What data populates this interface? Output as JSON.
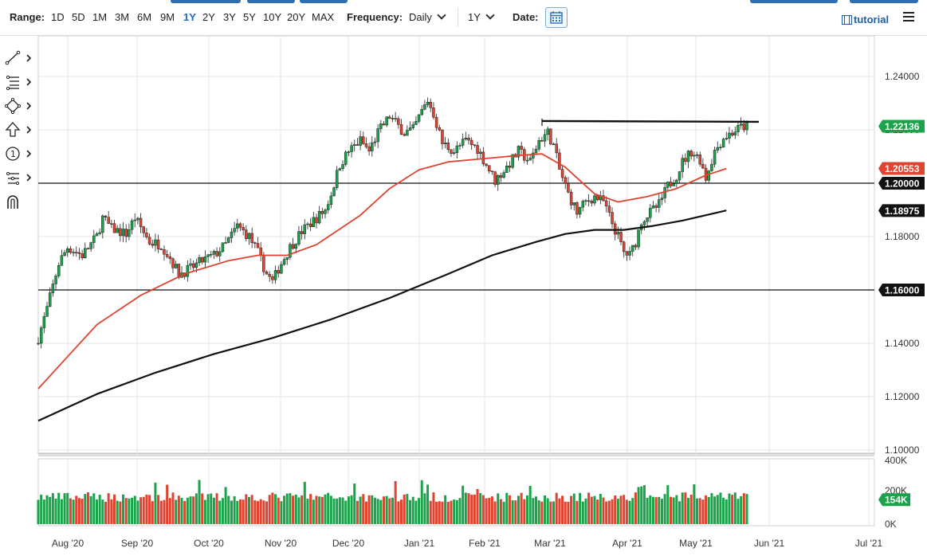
{
  "toolbar": {
    "range_label": "Range:",
    "ranges": [
      "1D",
      "5D",
      "1M",
      "3M",
      "6M",
      "9M",
      "1Y",
      "2Y",
      "3Y",
      "5Y",
      "10Y",
      "20Y",
      "MAX"
    ],
    "active_range": "1Y",
    "frequency_label": "Frequency:",
    "frequency_value": "Daily",
    "period_value": "1Y",
    "date_label": "Date:",
    "tutorial_label": "tutorial"
  },
  "side_tools": [
    "line-draw-icon",
    "fibonacci-icon",
    "shape-icon",
    "arrow-icon",
    "annotation-icon",
    "pitchfork-icon",
    "magnet-icon"
  ],
  "colors": {
    "up": "#1aa34a",
    "down": "#e0432f",
    "ma_fast": "#e0432f",
    "ma_slow": "#111111",
    "tag_green": "#1aa34a",
    "tag_red": "#e0432f",
    "tag_black": "#111111"
  },
  "chart_data": {
    "type": "candlestick",
    "grid": true,
    "y_axis_position": "right",
    "price_axis": {
      "min": 1.1,
      "max": 1.25,
      "ticks": [
        "1.24000",
        "1.22000",
        "1.20000",
        "1.18000",
        "1.16000",
        "1.14000",
        "1.12000",
        "1.10000"
      ]
    },
    "volume_axis": {
      "ticks": [
        "400K",
        "200K",
        "0K"
      ]
    },
    "x_axis": {
      "ticks": [
        "Aug '20",
        "Sep '20",
        "Oct '20",
        "Nov '20",
        "Dec '20",
        "Jan '21",
        "Feb '21",
        "Mar '21",
        "Apr '21",
        "May '21",
        "Jun '21",
        "Jul '21"
      ]
    },
    "price_tags": [
      {
        "label": "1.22136",
        "value": 1.22136,
        "color": "green"
      },
      {
        "label": "1.20553",
        "value": 1.20553,
        "color": "red"
      },
      {
        "label": "1.20000",
        "value": 1.2,
        "color": "black"
      },
      {
        "label": "1.18975",
        "value": 1.18975,
        "color": "black"
      },
      {
        "label": "1.16000",
        "value": 1.16,
        "color": "black"
      }
    ],
    "volume_tag": {
      "label": "154K",
      "value": 154
    },
    "horizontal_lines": [
      1.2,
      1.16
    ],
    "resistance_line": {
      "from": [
        "Feb '21",
        1.2233
      ],
      "to": [
        "May '21",
        1.223
      ]
    },
    "moving_averages": [
      {
        "color": "red",
        "points": [
          [
            0,
            1.123
          ],
          [
            10,
            1.135
          ],
          [
            20,
            1.147
          ],
          [
            35,
            1.158
          ],
          [
            50,
            1.166
          ],
          [
            65,
            1.171
          ],
          [
            75,
            1.173
          ],
          [
            85,
            1.173
          ],
          [
            95,
            1.177
          ],
          [
            110,
            1.188
          ],
          [
            120,
            1.198
          ],
          [
            130,
            1.205
          ],
          [
            140,
            1.208
          ],
          [
            150,
            1.209
          ],
          [
            165,
            1.2105
          ],
          [
            172,
            1.211
          ],
          [
            180,
            1.206
          ],
          [
            190,
            1.196
          ],
          [
            198,
            1.193
          ],
          [
            208,
            1.195
          ],
          [
            218,
            1.198
          ],
          [
            228,
            1.203
          ],
          [
            235,
            1.2055
          ]
        ]
      },
      {
        "color": "black",
        "points": [
          [
            0,
            1.111
          ],
          [
            20,
            1.121
          ],
          [
            40,
            1.129
          ],
          [
            60,
            1.136
          ],
          [
            80,
            1.142
          ],
          [
            100,
            1.149
          ],
          [
            120,
            1.157
          ],
          [
            140,
            1.166
          ],
          [
            155,
            1.173
          ],
          [
            170,
            1.178
          ],
          [
            180,
            1.181
          ],
          [
            190,
            1.1825
          ],
          [
            200,
            1.1825
          ],
          [
            210,
            1.184
          ],
          [
            220,
            1.186
          ],
          [
            235,
            1.1898
          ]
        ]
      }
    ],
    "anchors": [
      [
        0,
        1.142
      ],
      [
        3,
        1.153
      ],
      [
        7,
        1.17
      ],
      [
        10,
        1.176
      ],
      [
        15,
        1.173
      ],
      [
        20,
        1.18
      ],
      [
        22,
        1.187
      ],
      [
        25,
        1.183
      ],
      [
        30,
        1.181
      ],
      [
        33,
        1.187
      ],
      [
        38,
        1.178
      ],
      [
        42,
        1.177
      ],
      [
        45,
        1.172
      ],
      [
        48,
        1.166
      ],
      [
        52,
        1.168
      ],
      [
        56,
        1.171
      ],
      [
        60,
        1.173
      ],
      [
        64,
        1.177
      ],
      [
        68,
        1.184
      ],
      [
        72,
        1.18
      ],
      [
        75,
        1.174
      ],
      [
        78,
        1.166
      ],
      [
        80,
        1.163
      ],
      [
        82,
        1.168
      ],
      [
        86,
        1.176
      ],
      [
        90,
        1.182
      ],
      [
        94,
        1.186
      ],
      [
        98,
        1.19
      ],
      [
        100,
        1.196
      ],
      [
        103,
        1.207
      ],
      [
        106,
        1.212
      ],
      [
        110,
        1.216
      ],
      [
        113,
        1.212
      ],
      [
        116,
        1.219
      ],
      [
        120,
        1.225
      ],
      [
        125,
        1.219
      ],
      [
        128,
        1.22
      ],
      [
        131,
        1.227
      ],
      [
        133,
        1.231
      ],
      [
        135,
        1.226
      ],
      [
        138,
        1.215
      ],
      [
        142,
        1.212
      ],
      [
        146,
        1.216
      ],
      [
        150,
        1.213
      ],
      [
        153,
        1.207
      ],
      [
        156,
        1.201
      ],
      [
        160,
        1.206
      ],
      [
        164,
        1.212
      ],
      [
        168,
        1.208
      ],
      [
        171,
        1.216
      ],
      [
        174,
        1.219
      ],
      [
        176,
        1.214
      ],
      [
        178,
        1.205
      ],
      [
        181,
        1.196
      ],
      [
        184,
        1.189
      ],
      [
        187,
        1.193
      ],
      [
        190,
        1.195
      ],
      [
        193,
        1.193
      ],
      [
        196,
        1.185
      ],
      [
        198,
        1.18
      ],
      [
        200,
        1.174
      ],
      [
        202,
        1.173
      ],
      [
        204,
        1.178
      ],
      [
        206,
        1.186
      ],
      [
        209,
        1.189
      ],
      [
        212,
        1.192
      ],
      [
        215,
        1.199
      ],
      [
        218,
        1.203
      ],
      [
        220,
        1.208
      ],
      [
        223,
        1.212
      ],
      [
        226,
        1.209
      ],
      [
        228,
        1.202
      ],
      [
        231,
        1.212
      ],
      [
        234,
        1.217
      ],
      [
        237,
        1.219
      ],
      [
        240,
        1.221
      ],
      [
        242,
        1.2214
      ]
    ]
  }
}
